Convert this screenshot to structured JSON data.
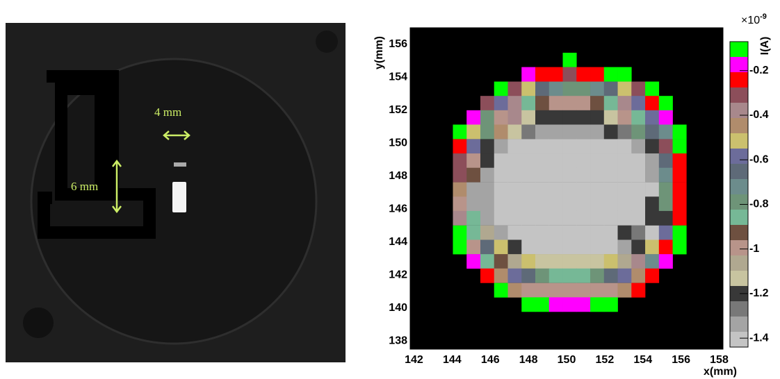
{
  "photo": {
    "annotations": [
      "4 mm",
      "6 mm"
    ]
  },
  "chart_data": {
    "type": "heatmap",
    "x_label": "x(mm)",
    "y_label": "y(mm)",
    "z_label": "I(A)",
    "z_exponent_base": "×10",
    "z_exponent": "-9",
    "xlim": [
      141.8,
      158.2
    ],
    "xticks": [
      142,
      144,
      146,
      148,
      150,
      152,
      154,
      156,
      158
    ],
    "ylim": [
      137.5,
      157
    ],
    "yticks": [
      138,
      140,
      142,
      144,
      146,
      148,
      150,
      152,
      154,
      156
    ],
    "zlim": [
      -1.44,
      -0.07
    ],
    "zticks": [
      -0.2,
      -0.4,
      -0.6,
      -0.8,
      -1,
      -1.2,
      -1.4
    ],
    "colors": [
      "#00ff00",
      "#ff00ff",
      "#ff0000",
      "#8c4e5a",
      "#a8888c",
      "#b08c6c",
      "#cbc06e",
      "#6c6c9a",
      "#5e6a78",
      "#6c8c8c",
      "#6e9478",
      "#76b896",
      "#6e5040",
      "#b8948a",
      "#b0a890",
      "#c8c4a0",
      "#383838",
      "#787878",
      "#a4a4a4",
      "#c4c4c4"
    ],
    "x": [
      144.4,
      145.12,
      145.84,
      146.56,
      147.28,
      148.0,
      148.72,
      149.44,
      150.16,
      150.88,
      151.6,
      152.32,
      153.04,
      153.76,
      154.48,
      155.2,
      155.92
    ],
    "y": [
      155.05,
      154.18,
      153.3,
      152.43,
      151.56,
      150.69,
      149.81,
      148.94,
      148.07,
      147.19,
      146.32,
      145.45,
      144.57,
      143.7,
      142.83,
      141.96,
      141.08,
      140.21
    ],
    "z": [
      [
        null,
        null,
        null,
        null,
        null,
        null,
        null,
        null,
        -0.1,
        null,
        null,
        null,
        null,
        null,
        null,
        null,
        null
      ],
      [
        null,
        null,
        null,
        null,
        null,
        -0.17,
        -0.24,
        -0.24,
        -0.3,
        -0.24,
        -0.24,
        -0.1,
        -0.1,
        null,
        null,
        null,
        null
      ],
      [
        null,
        null,
        null,
        -0.1,
        -0.3,
        -0.52,
        -0.65,
        -0.72,
        -0.79,
        -0.79,
        -0.72,
        -0.65,
        -0.52,
        -0.3,
        -0.1,
        null,
        null
      ],
      [
        null,
        null,
        -0.3,
        -0.58,
        -0.38,
        -0.86,
        -0.93,
        -0.99,
        -0.99,
        -0.99,
        -0.93,
        -0.86,
        -0.38,
        -0.58,
        -0.24,
        -0.1,
        null
      ],
      [
        null,
        -0.17,
        -0.79,
        -0.99,
        -0.38,
        -1.13,
        -1.19,
        -1.19,
        -1.19,
        -1.19,
        -1.19,
        -1.13,
        -0.99,
        -0.86,
        -0.58,
        -0.17,
        null
      ],
      [
        -0.1,
        -0.52,
        -0.79,
        -0.45,
        -1.13,
        -1.27,
        -1.34,
        -1.34,
        -1.34,
        -1.34,
        -1.34,
        -1.19,
        -1.27,
        -0.79,
        -0.65,
        -0.72,
        -0.1
      ],
      [
        -0.24,
        -0.58,
        -1.19,
        -1.34,
        -1.41,
        -1.41,
        -1.41,
        -1.41,
        -1.41,
        -1.41,
        -1.41,
        -1.41,
        -1.41,
        -1.34,
        -1.19,
        -0.3,
        -0.1
      ],
      [
        -0.3,
        -0.99,
        -1.19,
        -1.41,
        -1.41,
        -1.41,
        -1.41,
        -1.41,
        -1.41,
        -1.41,
        -1.41,
        -1.41,
        -1.41,
        -1.41,
        -1.34,
        -0.65,
        -0.24
      ],
      [
        -0.3,
        -0.93,
        -1.34,
        -1.41,
        -1.41,
        -1.41,
        -1.41,
        -1.41,
        -1.41,
        -1.41,
        -1.41,
        -1.41,
        -1.41,
        -1.41,
        -1.34,
        -0.72,
        -0.24
      ],
      [
        -0.45,
        -1.34,
        -1.34,
        -1.41,
        -1.41,
        -1.41,
        -1.41,
        -1.41,
        -1.41,
        -1.41,
        -1.41,
        -1.41,
        -1.41,
        -1.41,
        -1.41,
        -0.79,
        -0.24
      ],
      [
        -0.99,
        -1.34,
        -1.34,
        -1.41,
        -1.41,
        -1.41,
        -1.41,
        -1.41,
        -1.41,
        -1.41,
        -1.41,
        -1.41,
        -1.41,
        -1.41,
        -1.19,
        -0.79,
        -0.24
      ],
      [
        -0.38,
        -0.86,
        -1.34,
        -1.41,
        -1.41,
        -1.41,
        -1.41,
        -1.41,
        -1.41,
        -1.41,
        -1.41,
        -1.41,
        -1.41,
        -1.41,
        -1.19,
        -1.19,
        -0.24
      ],
      [
        -0.1,
        -0.86,
        -1.06,
        -1.34,
        -1.41,
        -1.41,
        -1.41,
        -1.41,
        -1.41,
        -1.41,
        -1.41,
        -1.41,
        -1.19,
        -1.27,
        -1.41,
        -0.58,
        -0.1
      ],
      [
        -0.1,
        -0.99,
        -0.65,
        -0.52,
        -1.19,
        -1.41,
        -1.41,
        -1.41,
        -1.41,
        -1.41,
        -1.41,
        -1.41,
        -1.34,
        -1.19,
        -0.52,
        -0.24,
        -0.1
      ],
      [
        null,
        -0.17,
        -0.86,
        -0.93,
        -1.06,
        -0.52,
        -1.13,
        -1.13,
        -1.13,
        -1.13,
        -1.13,
        -0.52,
        -1.06,
        -0.38,
        -0.72,
        -0.17,
        null
      ],
      [
        null,
        null,
        -0.24,
        -0.45,
        -0.58,
        -0.65,
        -0.79,
        -0.86,
        -0.86,
        -0.86,
        -0.79,
        -0.65,
        -0.58,
        -0.45,
        -0.24,
        null,
        null
      ],
      [
        null,
        null,
        null,
        -0.1,
        -0.45,
        -0.99,
        -0.99,
        -0.99,
        -0.99,
        -0.99,
        -0.99,
        -0.99,
        -0.45,
        -0.24,
        null,
        null,
        null
      ],
      [
        null,
        null,
        null,
        null,
        null,
        -0.1,
        -0.1,
        -0.17,
        -0.17,
        -0.17,
        -0.1,
        -0.1,
        null,
        null,
        null,
        null,
        null
      ]
    ]
  }
}
